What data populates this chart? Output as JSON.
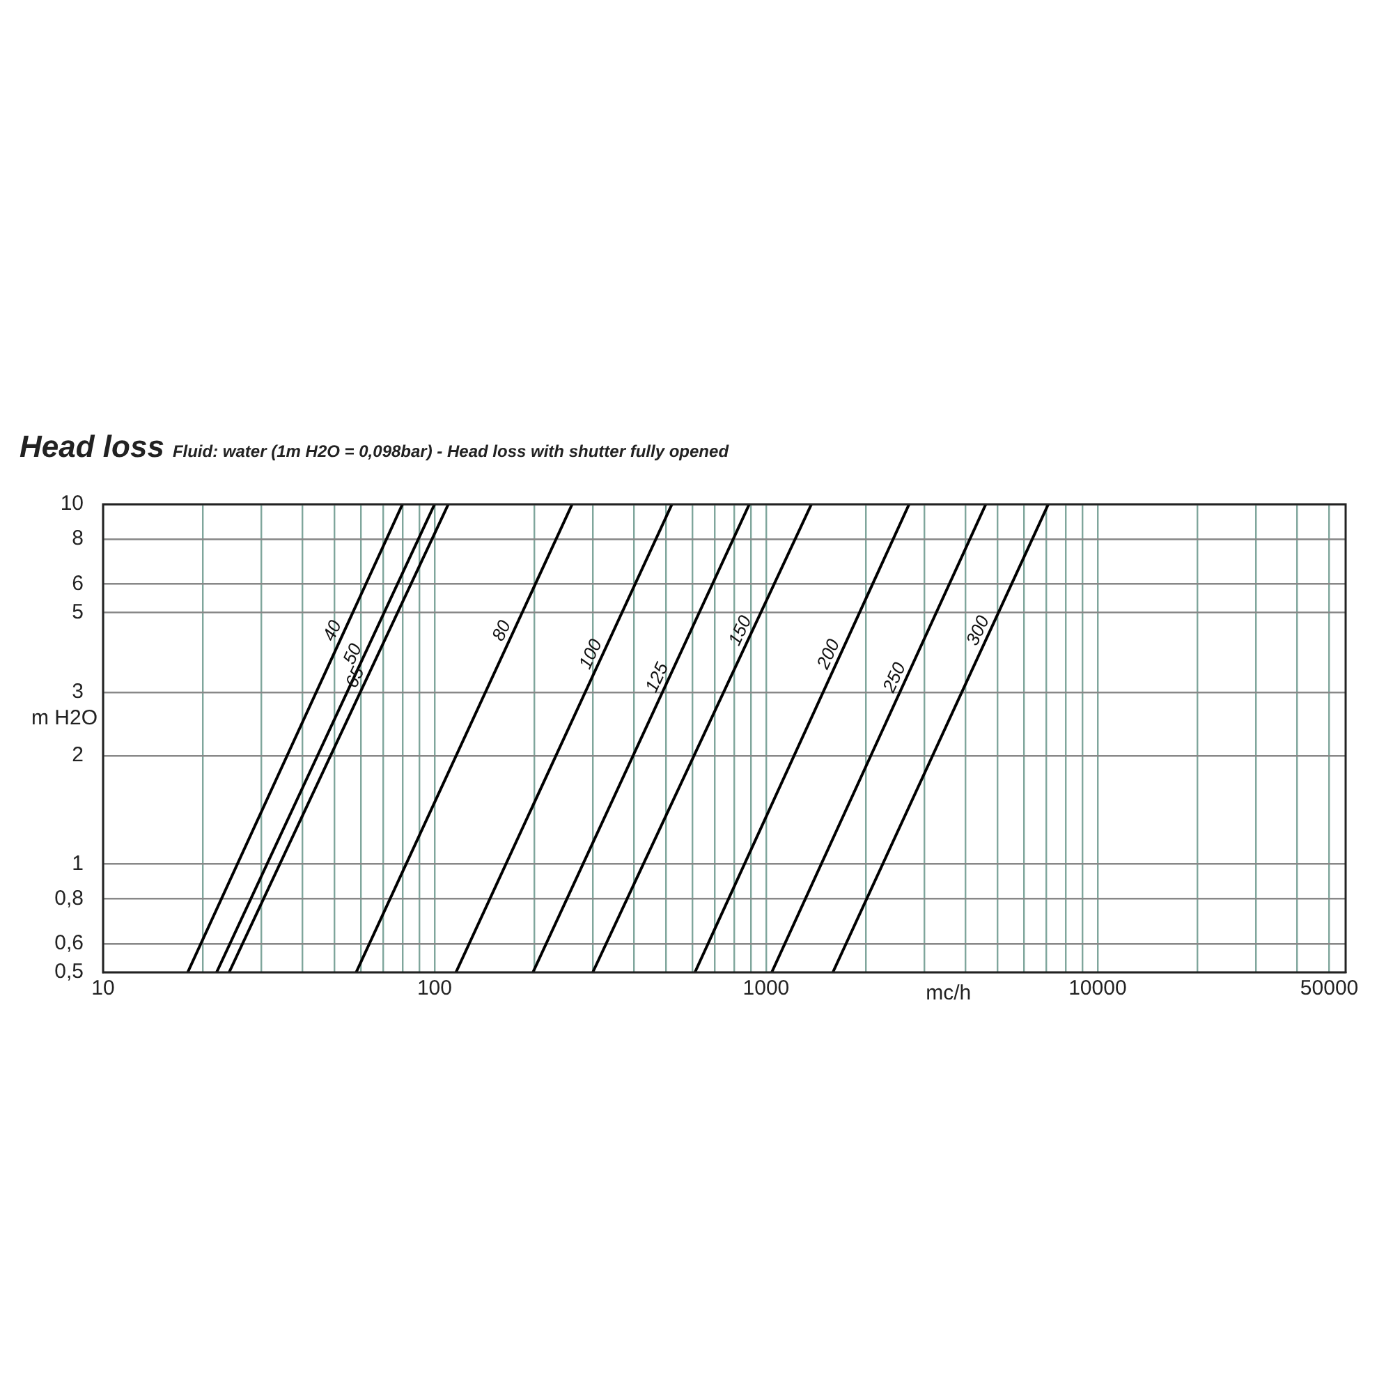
{
  "chart_data": {
    "type": "line",
    "title": "Head loss",
    "subtitle": "Fluid: water (1m H2O = 0,098bar) - Head loss with shutter fully opened",
    "xlabel": "mc/h",
    "ylabel": "m H2O",
    "log": "xy",
    "grid": true,
    "legend": false,
    "marker": "none",
    "line_style": "solid",
    "xlim": [
      10,
      56000
    ],
    "xticks": [
      10,
      {
        "value": 20,
        "label": null
      },
      {
        "value": 30,
        "label": null
      },
      {
        "value": 40,
        "label": null
      },
      {
        "value": 50,
        "label": null
      },
      {
        "value": 60,
        "label": null
      },
      {
        "value": 70,
        "label": null
      },
      {
        "value": 80,
        "label": null
      },
      {
        "value": 90,
        "label": null
      },
      100,
      {
        "value": 200,
        "label": null
      },
      {
        "value": 300,
        "label": null
      },
      {
        "value": 400,
        "label": null
      },
      {
        "value": 500,
        "label": null
      },
      {
        "value": 600,
        "label": null
      },
      {
        "value": 700,
        "label": null
      },
      {
        "value": 800,
        "label": null
      },
      {
        "value": 900,
        "label": null
      },
      1000,
      {
        "value": 2000,
        "label": null
      },
      {
        "value": 3000,
        "label": null
      },
      {
        "value": 4000,
        "label": null
      },
      {
        "value": 5000,
        "label": null
      },
      {
        "value": 6000,
        "label": null
      },
      {
        "value": 7000,
        "label": null
      },
      {
        "value": 8000,
        "label": null
      },
      {
        "value": 9000,
        "label": null
      },
      10000,
      {
        "value": 20000,
        "label": null
      },
      {
        "value": 30000,
        "label": null
      },
      {
        "value": 40000,
        "label": null
      },
      50000
    ],
    "ylim": [
      0.5,
      10
    ],
    "yticks": [
      {
        "value": 0.5,
        "label": "0,5"
      },
      {
        "value": 0.6,
        "label": "0,6"
      },
      {
        "value": 0.8,
        "label": "0,8"
      },
      1,
      2,
      3,
      5,
      6,
      8,
      10
    ],
    "series": [
      {
        "name": "40",
        "color": "#000000",
        "x": [
          18,
          80
        ],
        "values": [
          0.5,
          10
        ]
      },
      {
        "name": "50",
        "color": "#000000",
        "x": [
          22,
          100
        ],
        "values": [
          0.5,
          10
        ]
      },
      {
        "name": "65",
        "color": "#000000",
        "x": [
          24,
          110
        ],
        "values": [
          0.5,
          10
        ]
      },
      {
        "name": "80",
        "color": "#000000",
        "x": [
          58,
          260
        ],
        "values": [
          0.5,
          10
        ]
      },
      {
        "name": "100",
        "color": "#000000",
        "x": [
          116,
          520
        ],
        "values": [
          0.5,
          10
        ]
      },
      {
        "name": "125",
        "color": "#000000",
        "x": [
          198,
          890
        ],
        "values": [
          0.5,
          10
        ]
      },
      {
        "name": "150",
        "color": "#000000",
        "x": [
          300,
          1370
        ],
        "values": [
          0.5,
          10
        ]
      },
      {
        "name": "200",
        "color": "#000000",
        "x": [
          610,
          2700
        ],
        "values": [
          0.5,
          10
        ]
      },
      {
        "name": "250",
        "color": "#000000",
        "x": [
          1040,
          4600
        ],
        "values": [
          0.5,
          10
        ]
      },
      {
        "name": "300",
        "color": "#000000",
        "x": [
          1590,
          7100
        ],
        "values": [
          0.5,
          10
        ]
      }
    ]
  }
}
